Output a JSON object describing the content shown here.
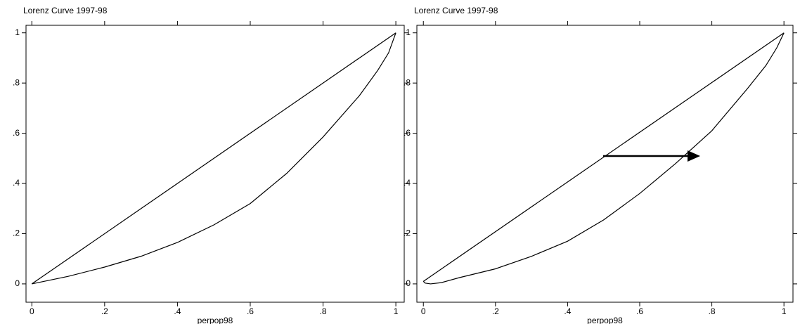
{
  "chart_data": [
    {
      "type": "line",
      "title": "Lorenz Curve 1997-98",
      "xlabel": "perpop98",
      "xlim": [
        -0.016,
        1.023
      ],
      "ylim": [
        -0.073,
        1.03
      ],
      "xticks": [
        0,
        {
          "value": 0.2,
          "label": ".2"
        },
        {
          "value": 0.4,
          "label": ".4"
        },
        {
          "value": 0.6,
          "label": ".6"
        },
        {
          "value": 0.8,
          "label": ".8"
        },
        1
      ],
      "yticks": [
        0,
        {
          "value": 0.2,
          "label": ".2"
        },
        {
          "value": 0.4,
          "label": ".4"
        },
        {
          "value": 0.6,
          "label": ".6"
        },
        {
          "value": 0.8,
          "label": ".8"
        },
        1
      ],
      "series": [
        {
          "color": "#000000",
          "x": [
            0,
            1
          ],
          "values": [
            0,
            1
          ]
        },
        {
          "color": "#000000",
          "x": [
            0,
            0.1,
            0.2,
            0.3,
            0.4,
            0.5,
            0.6,
            0.7,
            0.8,
            0.9,
            0.95,
            0.98,
            1
          ],
          "values": [
            0,
            0.03,
            0.067,
            0.11,
            0.165,
            0.235,
            0.32,
            0.44,
            0.585,
            0.75,
            0.85,
            0.92,
            1
          ]
        }
      ]
    },
    {
      "type": "line",
      "title": "Lorenz Curve 1997-98",
      "xlabel": "perpop98",
      "xlim": [
        -0.018,
        1.025
      ],
      "ylim": [
        -0.073,
        1.03
      ],
      "xticks": [
        0,
        {
          "value": 0.2,
          "label": ".2"
        },
        {
          "value": 0.4,
          "label": ".4"
        },
        {
          "value": 0.6,
          "label": ".6"
        },
        {
          "value": 0.8,
          "label": ".8"
        },
        1
      ],
      "yticks": [
        0,
        {
          "value": 0.2,
          "label": ".2"
        },
        {
          "value": 0.4,
          "label": ".4"
        },
        {
          "value": 0.6,
          "label": ".6"
        },
        {
          "value": 0.8,
          "label": ".8"
        },
        1
      ],
      "series": [
        {
          "color": "#000000",
          "x": [
            0,
            1
          ],
          "values": [
            0.01,
            1
          ]
        },
        {
          "color": "#000000",
          "x": [
            0,
            0.005,
            0.02,
            0.05,
            0.1,
            0.2,
            0.3,
            0.4,
            0.5,
            0.6,
            0.7,
            0.8,
            0.9,
            0.95,
            0.98,
            1
          ],
          "values": [
            0.01,
            0.003,
            0,
            0.005,
            0.025,
            0.06,
            0.11,
            0.17,
            0.255,
            0.36,
            0.48,
            0.61,
            0.78,
            0.87,
            0.94,
            1
          ]
        }
      ]
    }
  ]
}
